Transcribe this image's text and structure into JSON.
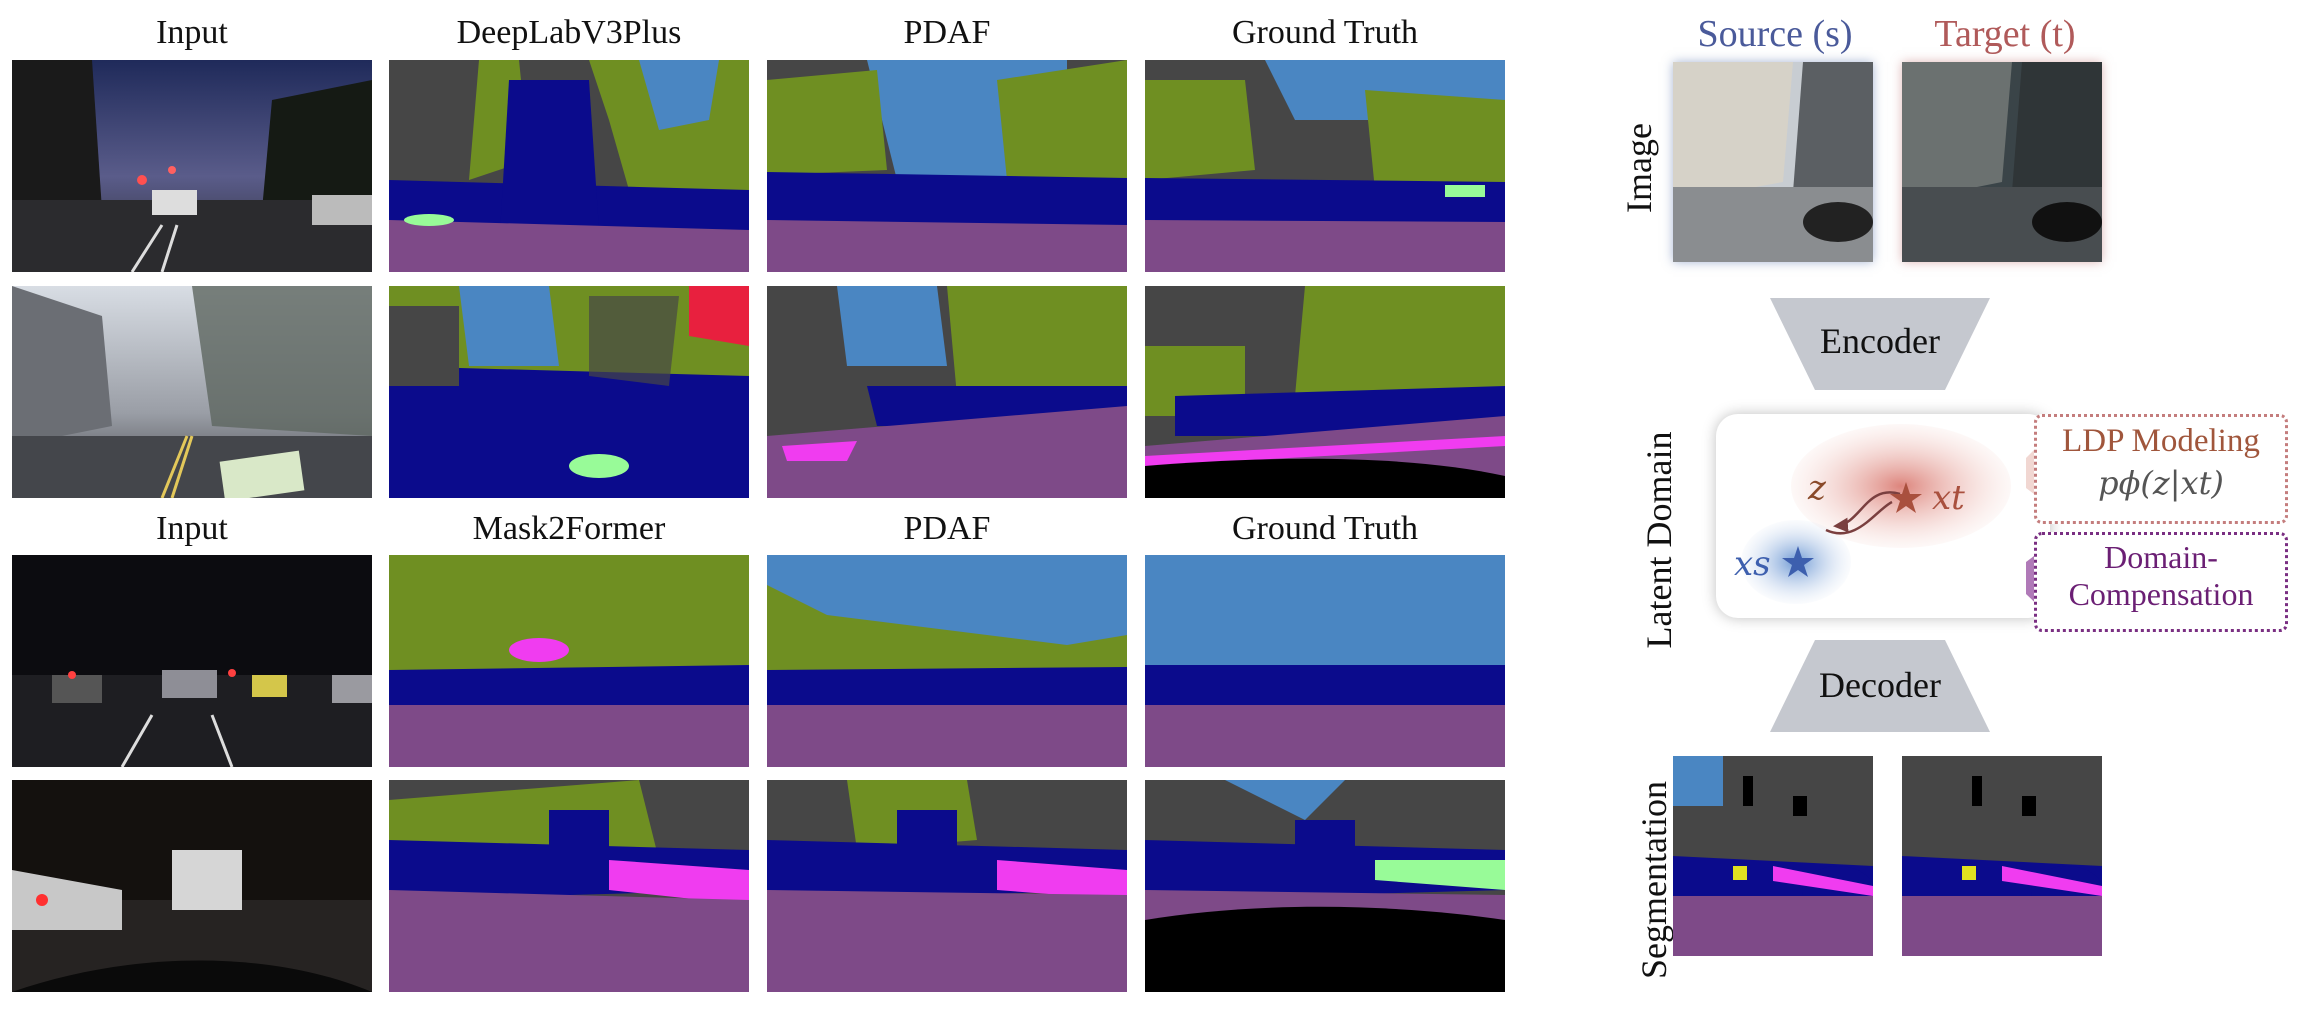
{
  "left_panel": {
    "top_headers": [
      "Input",
      "DeepLabV3Plus",
      "PDAF",
      "Ground Truth"
    ],
    "bottom_headers": [
      "Input",
      "Mask2Former",
      "PDAF",
      "Ground Truth"
    ]
  },
  "right_panel": {
    "source_label": "Source (s)",
    "target_label": "Target (t)",
    "row_image": "Image",
    "encoder": "Encoder",
    "row_latent": "Latent Domain",
    "decoder": "Decoder",
    "row_segmentation": "Segmentation",
    "ldp_title": "LDP Modeling",
    "ldp_formula": "pϕ(z|xt)",
    "dc_line1": "Domain-",
    "dc_line2": "Compensation",
    "latent_z": "z",
    "latent_xt": "xt",
    "latent_xs": "xs"
  },
  "colors": {
    "road": "#7e4a88",
    "car": "#0b0b8c",
    "vegetation": "#6f8f22",
    "sky": "#4a86c2",
    "building": "#464646",
    "sidewalk": "#f03cf0",
    "terrain": "#98fb98",
    "person": "#e8203e",
    "sign": "#e0e020",
    "void": "#000000",
    "source_blue": "#4a5a9a",
    "target_red": "#b05a5a"
  }
}
